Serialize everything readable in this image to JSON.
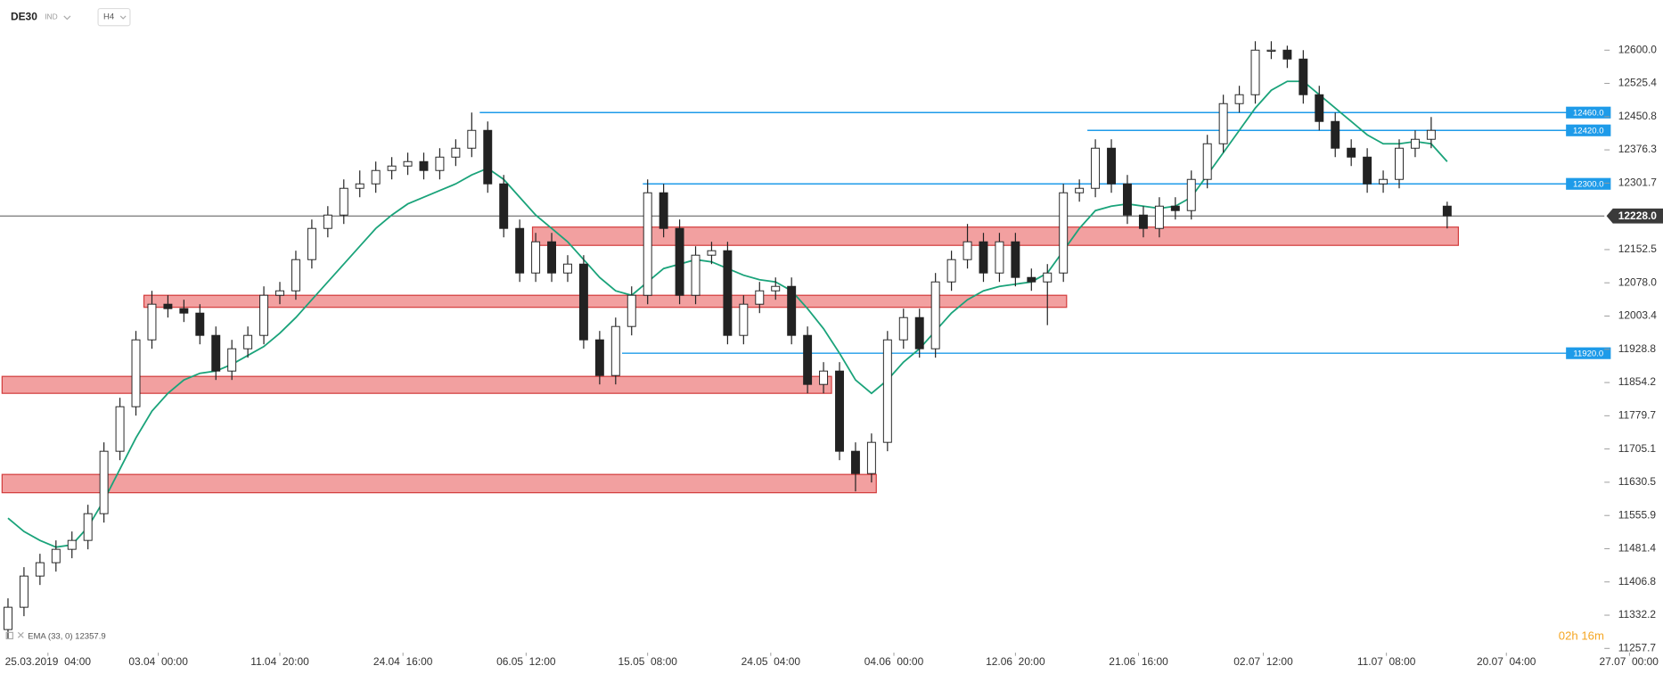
{
  "header": {
    "symbol": "DE30",
    "market": "IND",
    "timeframe": "H4"
  },
  "chart_data": {
    "type": "candlestick",
    "up_color": "#ffffff",
    "down_color": "#222222",
    "outline_color": "#222222",
    "ohlc": [
      [
        11300,
        11370,
        11280,
        11350
      ],
      [
        11350,
        11440,
        11330,
        11420
      ],
      [
        11420,
        11470,
        11400,
        11450
      ],
      [
        11450,
        11500,
        11430,
        11480
      ],
      [
        11480,
        11520,
        11460,
        11500
      ],
      [
        11500,
        11580,
        11480,
        11560
      ],
      [
        11560,
        11720,
        11540,
        11700
      ],
      [
        11700,
        11820,
        11680,
        11800
      ],
      [
        11800,
        11970,
        11780,
        11950
      ],
      [
        11950,
        12060,
        11930,
        12030
      ],
      [
        12030,
        12050,
        12000,
        12020
      ],
      [
        12020,
        12040,
        11990,
        12010
      ],
      [
        12010,
        12030,
        11940,
        11960
      ],
      [
        11960,
        11980,
        11860,
        11880
      ],
      [
        11880,
        11950,
        11860,
        11930
      ],
      [
        11930,
        11980,
        11910,
        11960
      ],
      [
        11960,
        12070,
        11940,
        12050
      ],
      [
        12050,
        12080,
        12030,
        12060
      ],
      [
        12060,
        12150,
        12040,
        12130
      ],
      [
        12130,
        12220,
        12110,
        12200
      ],
      [
        12200,
        12250,
        12180,
        12230
      ],
      [
        12230,
        12310,
        12210,
        12290
      ],
      [
        12290,
        12330,
        12270,
        12300
      ],
      [
        12300,
        12350,
        12280,
        12330
      ],
      [
        12330,
        12360,
        12310,
        12340
      ],
      [
        12340,
        12370,
        12320,
        12350
      ],
      [
        12350,
        12370,
        12310,
        12330
      ],
      [
        12330,
        12380,
        12310,
        12360
      ],
      [
        12360,
        12400,
        12340,
        12380
      ],
      [
        12380,
        12460,
        12360,
        12420
      ],
      [
        12420,
        12440,
        12280,
        12300
      ],
      [
        12300,
        12320,
        12180,
        12200
      ],
      [
        12200,
        12220,
        12080,
        12100
      ],
      [
        12100,
        12190,
        12080,
        12170
      ],
      [
        12170,
        12190,
        12080,
        12100
      ],
      [
        12100,
        12140,
        12080,
        12120
      ],
      [
        12120,
        12140,
        11930,
        11950
      ],
      [
        11950,
        11970,
        11850,
        11870
      ],
      [
        11870,
        12000,
        11850,
        11980
      ],
      [
        11980,
        12070,
        11960,
        12050
      ],
      [
        12050,
        12310,
        12030,
        12280
      ],
      [
        12280,
        12300,
        12180,
        12200
      ],
      [
        12200,
        12220,
        12030,
        12050
      ],
      [
        12050,
        12160,
        12030,
        12140
      ],
      [
        12140,
        12170,
        12120,
        12150
      ],
      [
        12150,
        12170,
        11940,
        11960
      ],
      [
        11960,
        12050,
        11940,
        12030
      ],
      [
        12030,
        12080,
        12010,
        12060
      ],
      [
        12060,
        12090,
        12040,
        12070
      ],
      [
        12070,
        12090,
        11940,
        11960
      ],
      [
        11960,
        11980,
        11830,
        11850
      ],
      [
        11850,
        11900,
        11830,
        11880
      ],
      [
        11880,
        11900,
        11680,
        11700
      ],
      [
        11700,
        11720,
        11610,
        11650
      ],
      [
        11650,
        11740,
        11630,
        11720
      ],
      [
        11720,
        11970,
        11700,
        11950
      ],
      [
        11950,
        12020,
        11930,
        12000
      ],
      [
        12000,
        12020,
        11910,
        11930
      ],
      [
        11930,
        12100,
        11910,
        12080
      ],
      [
        12080,
        12150,
        12060,
        12130
      ],
      [
        12130,
        12210,
        12110,
        12170
      ],
      [
        12170,
        12190,
        12080,
        12100
      ],
      [
        12100,
        12190,
        12080,
        12170
      ],
      [
        12170,
        12190,
        12070,
        12090
      ],
      [
        12090,
        12110,
        12060,
        12080
      ],
      [
        12080,
        12120,
        11983,
        12100
      ],
      [
        12100,
        12300,
        12080,
        12280
      ],
      [
        12280,
        12310,
        12260,
        12290
      ],
      [
        12290,
        12400,
        12270,
        12380
      ],
      [
        12380,
        12400,
        12280,
        12300
      ],
      [
        12300,
        12320,
        12210,
        12230
      ],
      [
        12230,
        12250,
        12180,
        12200
      ],
      [
        12200,
        12270,
        12180,
        12250
      ],
      [
        12250,
        12270,
        12220,
        12240
      ],
      [
        12240,
        12330,
        12220,
        12310
      ],
      [
        12310,
        12410,
        12290,
        12390
      ],
      [
        12390,
        12500,
        12370,
        12480
      ],
      [
        12480,
        12520,
        12460,
        12500
      ],
      [
        12500,
        12620,
        12480,
        12600
      ],
      [
        12600,
        12620,
        12580,
        12600
      ],
      [
        12600,
        12610,
        12560,
        12580
      ],
      [
        12580,
        12600,
        12480,
        12500
      ],
      [
        12500,
        12520,
        12420,
        12440
      ],
      [
        12440,
        12460,
        12360,
        12380
      ],
      [
        12380,
        12400,
        12340,
        12360
      ],
      [
        12360,
        12380,
        12280,
        12300
      ],
      [
        12300,
        12330,
        12280,
        12310
      ],
      [
        12310,
        12400,
        12290,
        12380
      ],
      [
        12380,
        12420,
        12360,
        12400
      ],
      [
        12400,
        12450,
        12380,
        12420
      ],
      [
        12250,
        12260,
        12200,
        12228
      ]
    ],
    "ema": {
      "name": "EMA (33, 0) 12357.9",
      "color": "#1aa37a",
      "values": [
        11550,
        11520,
        11500,
        11485,
        11490,
        11530,
        11590,
        11660,
        11730,
        11790,
        11830,
        11860,
        11875,
        11880,
        11895,
        11915,
        11935,
        11965,
        12000,
        12040,
        12080,
        12120,
        12160,
        12200,
        12230,
        12255,
        12270,
        12285,
        12300,
        12320,
        12335,
        12310,
        12270,
        12230,
        12200,
        12170,
        12130,
        12090,
        12060,
        12050,
        12080,
        12110,
        12120,
        12130,
        12125,
        12110,
        12095,
        12085,
        12080,
        12060,
        12020,
        11975,
        11920,
        11860,
        11830,
        11860,
        11900,
        11930,
        11970,
        12010,
        12040,
        12060,
        12070,
        12075,
        12080,
        12100,
        12150,
        12200,
        12240,
        12250,
        12255,
        12250,
        12245,
        12250,
        12270,
        12320,
        12370,
        12420,
        12470,
        12510,
        12530,
        12530,
        12500,
        12470,
        12440,
        12410,
        12390,
        12390,
        12395,
        12390,
        12350
      ]
    },
    "levels": [
      {
        "value": 12460,
        "label": "12460.0",
        "x_start": 29.5
      },
      {
        "value": 12420,
        "label": "12420.0",
        "x_start": 67.5
      },
      {
        "value": 12300,
        "label": "12300.0",
        "x_start": 39.7
      },
      {
        "value": 11920,
        "label": "11920.0",
        "x_start": 38.4
      }
    ],
    "level_color": "#1e9be9",
    "zones": [
      {
        "ylim": [
          11607,
          11648
        ],
        "xlim": [
          -0.37,
          54.3
        ]
      },
      {
        "ylim": [
          11830,
          11868
        ],
        "xlim": [
          -0.37,
          51.5
        ]
      },
      {
        "ylim": [
          12023,
          12050
        ],
        "xlim": [
          8.5,
          66.2
        ]
      },
      {
        "ylim": [
          12162,
          12203
        ],
        "xlim": [
          32.8,
          90.7
        ]
      }
    ],
    "zone_color": "#f2a0a0",
    "last_price": {
      "value": 12228,
      "label": "12228.0"
    },
    "xlim": [
      -0.5,
      99.83
    ],
    "xticks": [
      {
        "value": 2.5,
        "label": "25.03.2019  04:00"
      },
      {
        "value": 9.4,
        "label": "03.04  00:00"
      },
      {
        "value": 17,
        "label": "11.04  20:00"
      },
      {
        "value": 24.7,
        "label": "24.04  16:00"
      },
      {
        "value": 32.4,
        "label": "06.05  12:00"
      },
      {
        "value": 40,
        "label": "15.05  08:00"
      },
      {
        "value": 47.7,
        "label": "24.05  04:00"
      },
      {
        "value": 55.4,
        "label": "04.06  00:00"
      },
      {
        "value": 63,
        "label": "12.06  20:00"
      },
      {
        "value": 70.7,
        "label": "21.06  16:00"
      },
      {
        "value": 78.5,
        "label": "02.07  12:00"
      },
      {
        "value": 86.2,
        "label": "11.07  08:00"
      },
      {
        "value": 93.7,
        "label": "20.07  04:00"
      },
      {
        "value": 101.4,
        "label": "27.07  00:00"
      }
    ],
    "ylim": [
      11257.7,
      12712.5
    ],
    "yticks": [
      {
        "value": 12600,
        "label": "12600.0"
      },
      {
        "value": 12525.4,
        "label": "12525.4"
      },
      {
        "value": 12450.8,
        "label": "12450.8"
      },
      {
        "value": 12376.3,
        "label": "12376.3"
      },
      {
        "value": 12301.7,
        "label": "12301.7"
      },
      {
        "value": 12152.5,
        "label": "12152.5"
      },
      {
        "value": 12078,
        "label": "12078.0"
      },
      {
        "value": 12003.4,
        "label": "12003.4"
      },
      {
        "value": 11928.8,
        "label": "11928.8"
      },
      {
        "value": 11854.2,
        "label": "11854.2"
      },
      {
        "value": 11779.7,
        "label": "11779.7"
      },
      {
        "value": 11705.1,
        "label": "11705.1"
      },
      {
        "value": 11630.5,
        "label": "11630.5"
      },
      {
        "value": 11555.9,
        "label": "11555.9"
      },
      {
        "value": 11481.4,
        "label": "11481.4"
      },
      {
        "value": 11406.8,
        "label": "11406.8"
      },
      {
        "value": 11332.2,
        "label": "11332.2"
      },
      {
        "value": 11257.7,
        "label": "11257.7"
      }
    ],
    "grid": false,
    "countdown": "02h 16m"
  }
}
